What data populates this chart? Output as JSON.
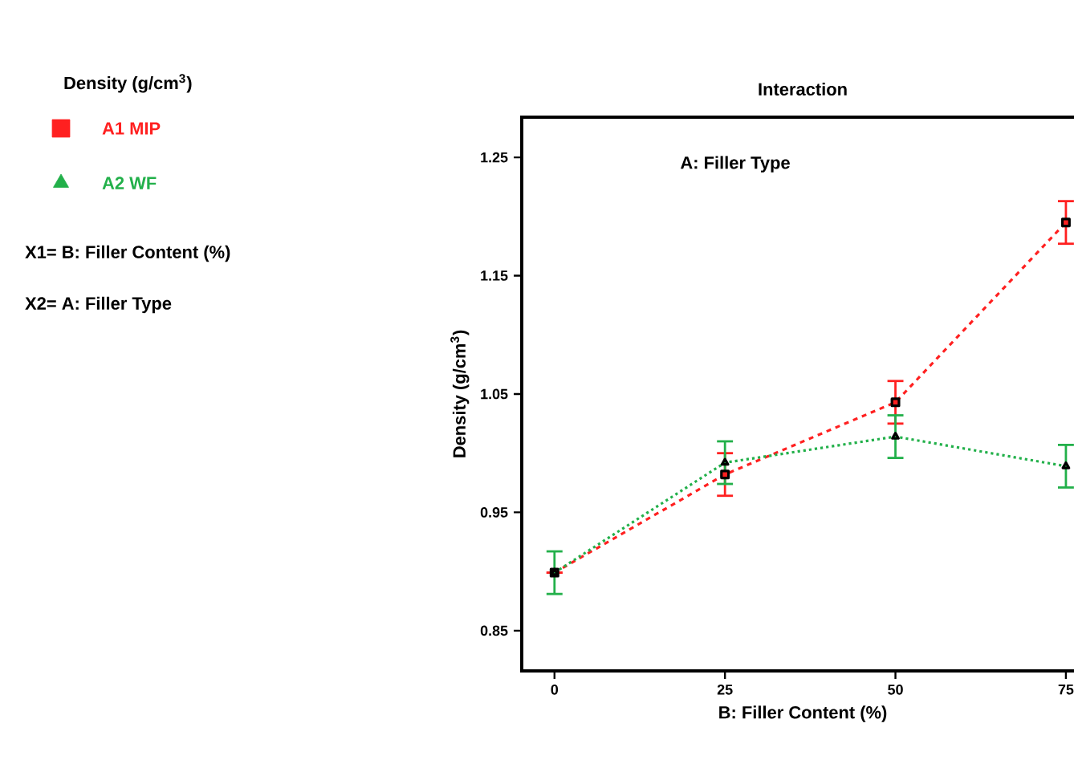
{
  "chart_data": {
    "type": "line",
    "title": "Interaction",
    "xlabel": "B: Filler Content (%)",
    "ylabel": "Density (g/cm$^{3}$)",
    "legend_title": "Density (g/cm$^{3}$)",
    "legend": "left",
    "annotations": [
      "A: Filler Type",
      "X1= B: Filler Content (%)",
      "X2= A: Filler Type"
    ],
    "x": [
      0,
      25,
      50,
      75
    ],
    "series": [
      {
        "name": "A1 MIP",
        "color": "#ff2020",
        "values": [
          0.899,
          0.982,
          1.043,
          1.195
        ],
        "errors": [
          null,
          0.018,
          0.018,
          0.018
        ],
        "marker": "square",
        "line_style": "dashed"
      },
      {
        "name": "A2 WF",
        "color": "#22b04a",
        "values": [
          0.899,
          0.992,
          1.014,
          0.989
        ],
        "errors": [
          0.018,
          0.018,
          0.018,
          0.018
        ],
        "marker": "triangle",
        "line_style": "dotted"
      }
    ],
    "xlim": [
      -4.8,
      77.6
    ],
    "ylim": [
      0.816,
      1.284
    ],
    "xticks": [
      0,
      25,
      50,
      75
    ],
    "yticks": [
      0.85,
      0.95,
      1.05,
      1.15,
      1.25
    ],
    "grid": false
  }
}
